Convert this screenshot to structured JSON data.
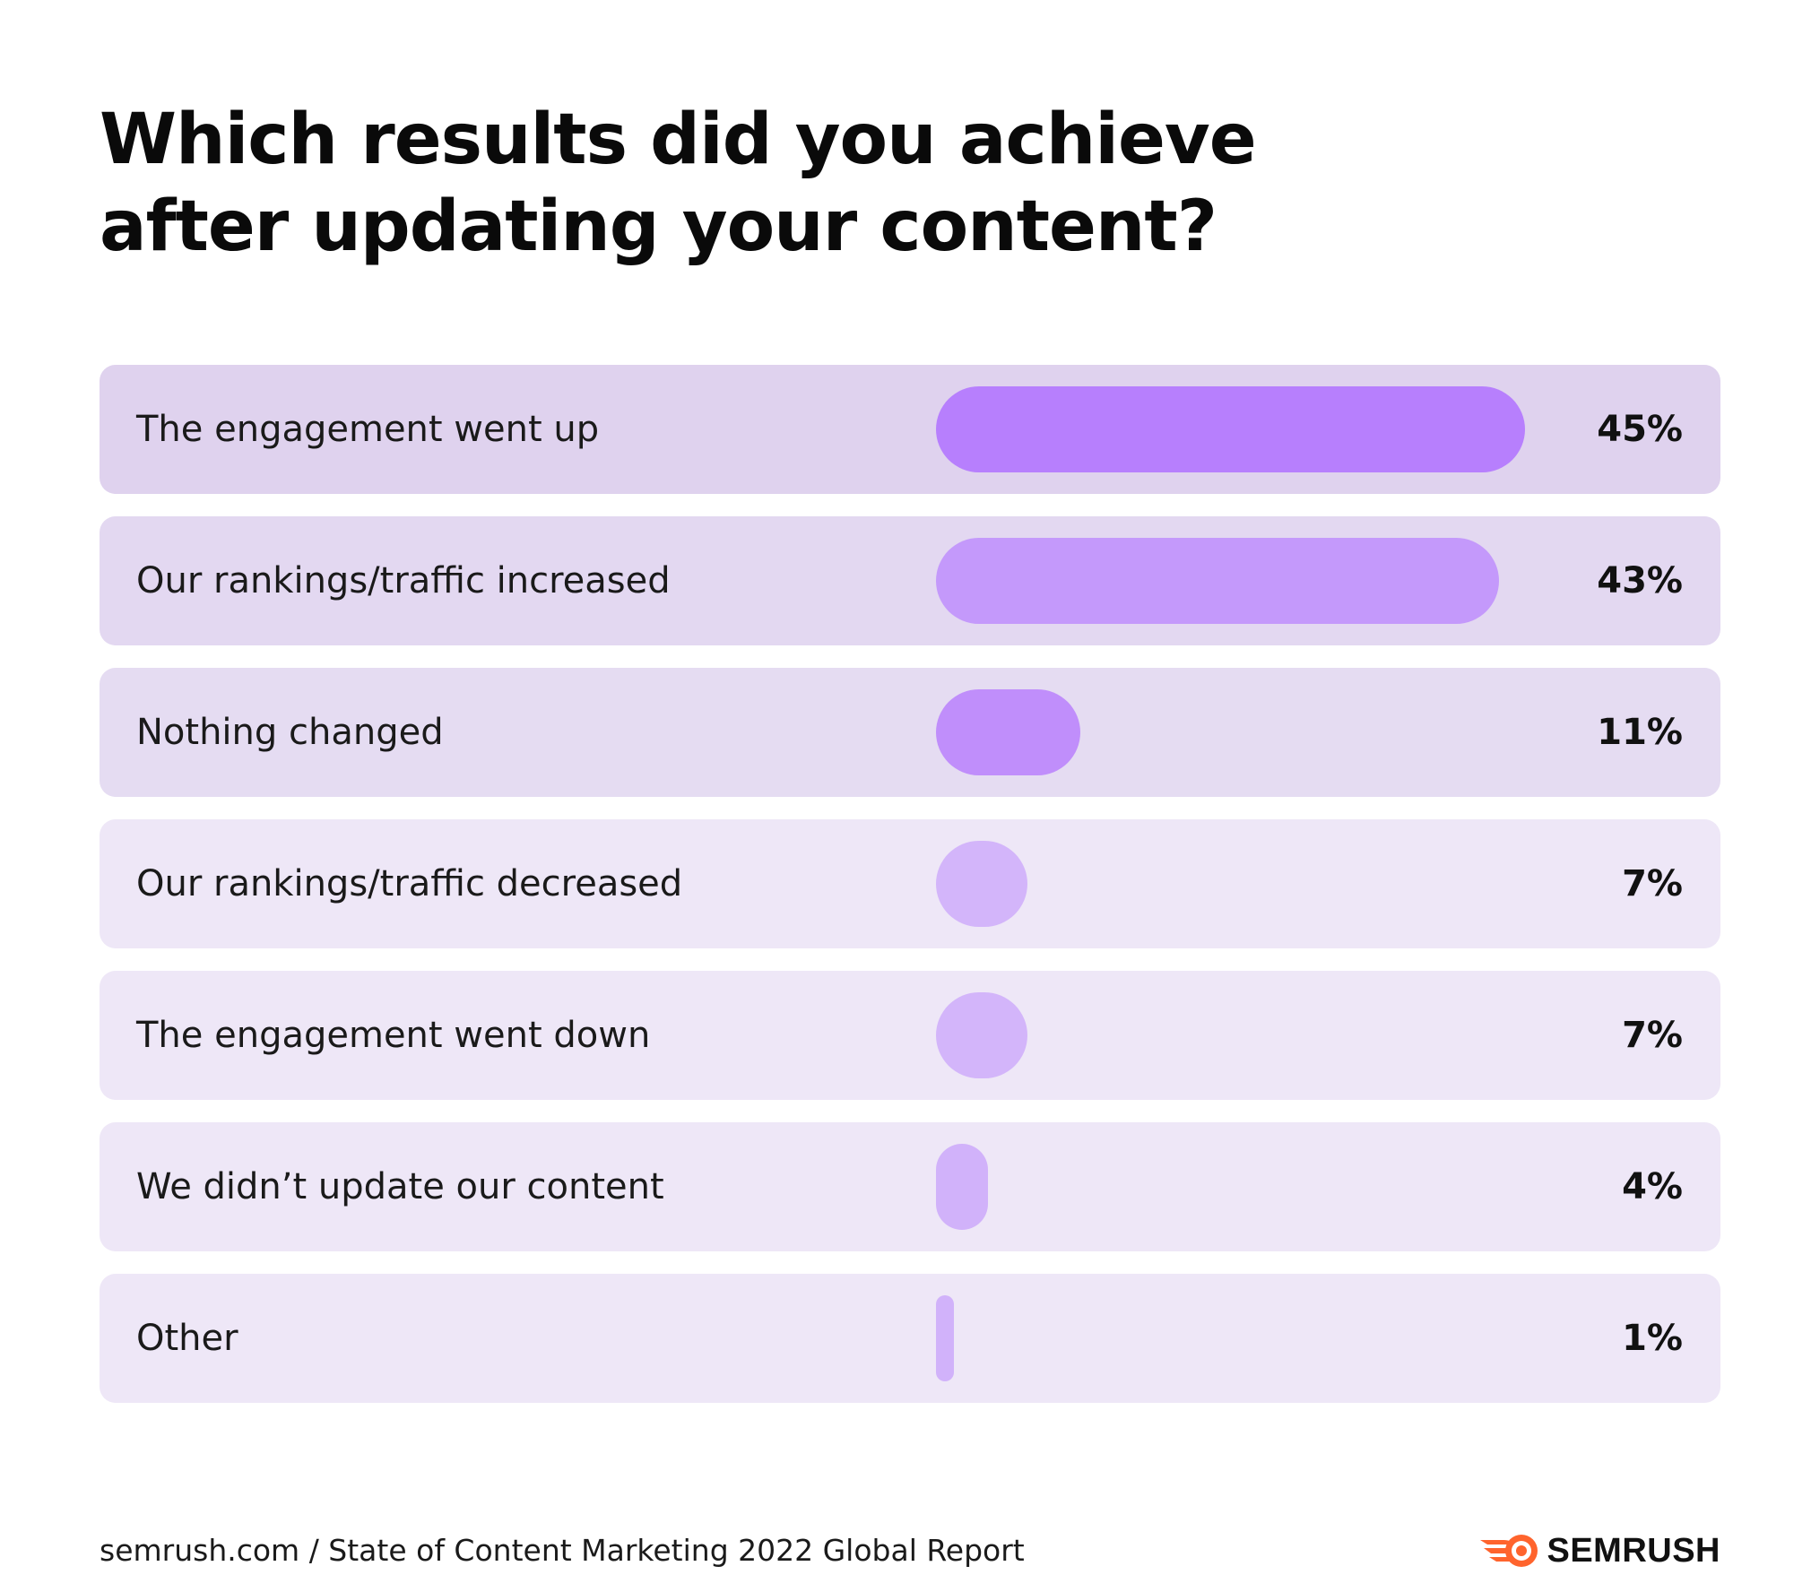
{
  "chart_data": {
    "type": "bar",
    "orientation": "horizontal",
    "title": "Which results did you achieve after updating your content?",
    "title_lines": [
      "Which results did you achieve",
      "after updating your content?"
    ],
    "categories": [
      "The engagement went up",
      "Our rankings/traffic increased",
      "Nothing changed",
      "Our rankings/traffic decreased",
      "The engagement went down",
      "We didn’t update our content",
      "Other"
    ],
    "values": [
      45,
      43,
      11,
      7,
      7,
      4,
      1
    ],
    "value_labels": [
      "45%",
      "43%",
      "11%",
      "7%",
      "7%",
      "4%",
      "1%"
    ],
    "unit": "%",
    "xlim": [
      0,
      45
    ],
    "grid": false,
    "legend": "none",
    "colors": {
      "row_backgrounds": [
        "#dfd2ee",
        "#e3d8f1",
        "#e5dcf2",
        "#eee7f7",
        "#eee7f7",
        "#eee7f7",
        "#eee7f7"
      ],
      "bars": [
        "#b77ffd",
        "#c499fb",
        "#c08efb",
        "#d3b5fa",
        "#d3b5fa",
        "#d1b2fa",
        "#d1b2fa"
      ]
    }
  },
  "footer": {
    "source": "semrush.com / State of Content Marketing 2022 Global Report",
    "brand": "SEMRUSH",
    "brand_icon": "semrush-flame-icon",
    "brand_color": "#ff642d"
  }
}
